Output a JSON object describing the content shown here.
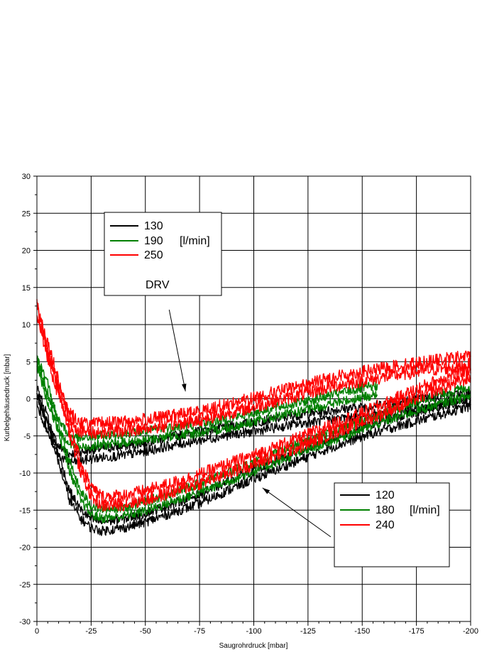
{
  "chart_data": {
    "type": "line",
    "xlabel": "Saugrohrdruck  [mbar]",
    "ylabel": "Kurbelgehäusedruck [mbar]",
    "xlim": [
      0,
      -200
    ],
    "ylim": [
      -30,
      30
    ],
    "x_ticks": [
      "0",
      "-25",
      "-50",
      "-75",
      "-100",
      "-125",
      "-150",
      "-175",
      "-200"
    ],
    "x_tick_values": [
      0,
      -25,
      -50,
      -75,
      -100,
      -125,
      -150,
      -175,
      -200
    ],
    "y_ticks": [
      "30",
      "25",
      "20",
      "15",
      "10",
      "5",
      "0",
      "-5",
      "-10",
      "-15",
      "-20",
      "-25",
      "-30"
    ],
    "y_tick_values": [
      30,
      25,
      20,
      15,
      10,
      5,
      0,
      -5,
      -10,
      -15,
      -20,
      -25,
      -30
    ],
    "grid": true,
    "colors": {
      "black": "#000000",
      "green": "#008000",
      "red": "#ff0000"
    },
    "legends": [
      {
        "entries": [
          {
            "label": "130",
            "color": "#000000"
          },
          {
            "label": "190",
            "color": "#008000"
          },
          {
            "label": "250",
            "color": "#ff0000"
          }
        ],
        "unit": "[l/min]",
        "note": "DRV"
      },
      {
        "entries": [
          {
            "label": "120",
            "color": "#000000"
          },
          {
            "label": "180",
            "color": "#008000"
          },
          {
            "label": "240",
            "color": "#ff0000"
          }
        ],
        "unit": "[l/min]",
        "note": ""
      }
    ],
    "series": [
      {
        "group": "DRV",
        "color": "#000000",
        "noise": 0.6,
        "x": [
          0,
          -5,
          -10,
          -15,
          -20,
          -25,
          -30,
          -40,
          -50,
          -60,
          -75,
          -90,
          -100,
          -110,
          -120,
          -130,
          -140,
          -150,
          -160,
          -170,
          -180,
          -190,
          -200
        ],
        "y": [
          0,
          -4,
          -7,
          -8,
          -7.8,
          -7.5,
          -7.3,
          -7,
          -6.5,
          -5.8,
          -5,
          -4.2,
          -3.8,
          -3.3,
          -2.8,
          -2.4,
          -2,
          -1.7,
          -1.3,
          -0.9,
          -0.5,
          -0.2,
          0.2
        ]
      },
      {
        "group": "DRV",
        "color": "#008000",
        "noise": 0.6,
        "x": [
          0,
          -5,
          -10,
          -15,
          -20,
          -25,
          -30,
          -40,
          -50,
          -60,
          -75,
          -90,
          -100,
          -110,
          -120,
          -130,
          -140,
          -150,
          -157
        ],
        "y": [
          5,
          0,
          -3.5,
          -5.5,
          -6,
          -5.8,
          -5.6,
          -5.3,
          -5,
          -4.5,
          -4,
          -3.2,
          -2.5,
          -1.8,
          -1.2,
          -0.5,
          0.2,
          0.8,
          1.2
        ]
      },
      {
        "group": "DRV",
        "color": "#ff0000",
        "noise": 0.8,
        "x": [
          0,
          -5,
          -10,
          -15,
          -20,
          -25,
          -30,
          -40,
          -50,
          -60,
          -75,
          -90,
          -100,
          -110,
          -120,
          -130,
          -140,
          -150,
          -160,
          -170,
          -180,
          -190,
          -200
        ],
        "y": [
          12,
          6,
          1,
          -2.5,
          -3.8,
          -4,
          -3.9,
          -3.7,
          -3.4,
          -3,
          -2.3,
          -1.2,
          -0.5,
          0.3,
          1,
          1.8,
          2.5,
          3,
          3.5,
          4,
          4.4,
          4.8,
          5.2
        ]
      },
      {
        "group": "flow",
        "color": "#000000",
        "noise": 0.6,
        "x": [
          0,
          -5,
          -10,
          -15,
          -20,
          -25,
          -30,
          -40,
          -50,
          -60,
          -75,
          -90,
          -100,
          -110,
          -120,
          -130,
          -140,
          -150,
          -160,
          -170,
          -180,
          -190,
          -200
        ],
        "y": [
          1,
          -3,
          -8,
          -13,
          -15.5,
          -16.8,
          -17.2,
          -16.8,
          -16,
          -15,
          -13.5,
          -11.5,
          -10.2,
          -9,
          -7.8,
          -6.6,
          -5.5,
          -4.5,
          -3.6,
          -2.8,
          -2,
          -1.2,
          -0.4
        ]
      },
      {
        "group": "flow",
        "color": "#008000",
        "noise": 0.6,
        "x": [
          0,
          -5,
          -10,
          -15,
          -20,
          -25,
          -30,
          -40,
          -50,
          -60,
          -75,
          -90,
          -100,
          -110,
          -120,
          -130,
          -140,
          -150,
          -160,
          -170,
          -180,
          -190,
          -200
        ],
        "y": [
          5,
          1.5,
          -4,
          -9,
          -13,
          -15,
          -15.5,
          -15.2,
          -14.5,
          -13.5,
          -12,
          -10.3,
          -9.2,
          -8,
          -6.8,
          -5.7,
          -4.6,
          -3.5,
          -2.5,
          -1.5,
          -0.6,
          0.3,
          1
        ]
      },
      {
        "group": "flow",
        "color": "#ff0000",
        "noise": 0.8,
        "x": [
          0,
          -5,
          -10,
          -15,
          -20,
          -25,
          -30,
          -40,
          -50,
          -60,
          -75,
          -90,
          -100,
          -110,
          -120,
          -130,
          -140,
          -150,
          -160,
          -170,
          -180,
          -190,
          -200
        ],
        "y": [
          12,
          7,
          2,
          -4,
          -9,
          -12.5,
          -13.8,
          -13.6,
          -13,
          -12.2,
          -10.8,
          -9.2,
          -8.2,
          -7.1,
          -6,
          -4.8,
          -3.6,
          -2.5,
          -1.3,
          0,
          1.3,
          2.4,
          3.5
        ]
      }
    ],
    "annotations": [
      {
        "type": "arrow",
        "from": [
          -61,
          12
        ],
        "to": [
          -68.5,
          1
        ]
      },
      {
        "type": "arrow",
        "from": [
          -135.5,
          -18.6
        ],
        "to": [
          -104,
          -12
        ]
      }
    ]
  }
}
